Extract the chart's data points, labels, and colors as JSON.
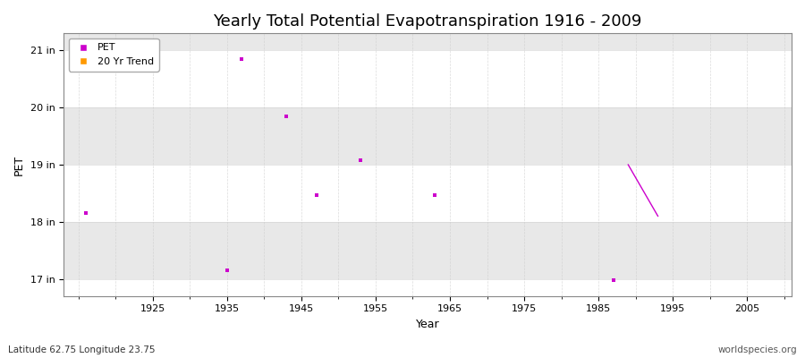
{
  "title": "Yearly Total Potential Evapotranspiration 1916 - 2009",
  "xlabel": "Year",
  "ylabel": "PET",
  "footnote_left": "Latitude 62.75 Longitude 23.75",
  "footnote_right": "worldspecies.org",
  "xlim": [
    1913,
    2011
  ],
  "ylim": [
    16.7,
    21.3
  ],
  "yticks": [
    17,
    18,
    19,
    20,
    21
  ],
  "ytick_labels": [
    "17 in",
    "18 in",
    "19 in",
    "20 in",
    "21 in"
  ],
  "xticks": [
    1925,
    1935,
    1945,
    1955,
    1965,
    1975,
    1985,
    1995,
    2005
  ],
  "pet_data": [
    [
      1916,
      18.15
    ],
    [
      1935,
      17.15
    ],
    [
      1937,
      20.85
    ],
    [
      1943,
      19.85
    ],
    [
      1947,
      18.47
    ],
    [
      1953,
      19.08
    ],
    [
      1963,
      18.47
    ],
    [
      1987,
      16.98
    ]
  ],
  "trend_data": [
    [
      1989,
      19.0
    ],
    [
      1993,
      18.1
    ]
  ],
  "pet_color": "#cc00cc",
  "trend_color": "#cc00cc",
  "background_color": "#ffffff",
  "band_colors": [
    "#ffffff",
    "#e8e8e8"
  ],
  "grid_color": "#cccccc",
  "title_fontsize": 13,
  "axis_label_fontsize": 9,
  "tick_fontsize": 8,
  "legend_labels": [
    "PET",
    "20 Yr Trend"
  ],
  "legend_colors": [
    "#cc00cc",
    "#ff9900"
  ]
}
